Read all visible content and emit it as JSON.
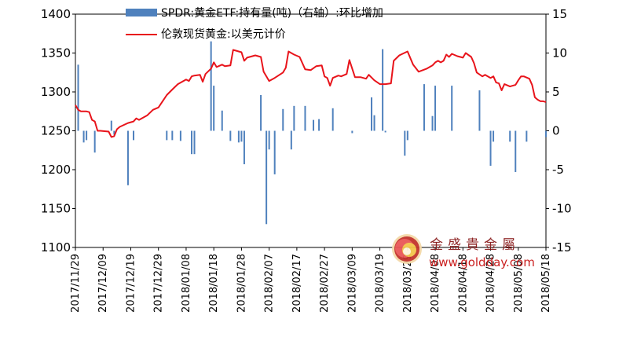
{
  "chart_data": {
    "type": "bar+line",
    "categories": [
      "2017/11/29",
      "2017/12/09",
      "2017/12/19",
      "2017/12/29",
      "2018/01/08",
      "2018/01/18",
      "2018/01/28",
      "2018/02/07",
      "2018/02/17",
      "2018/02/27",
      "2018/03/09",
      "2018/03/19",
      "2018/03/29",
      "2018/04/08",
      "2018/04/18",
      "2018/04/28",
      "2018/05/08",
      "2018/05/18"
    ],
    "x_range": [
      "2017-11-29",
      "2018-05-18"
    ],
    "y_left": {
      "min": 1100,
      "max": 1400,
      "ticks": [
        1100,
        1150,
        1200,
        1250,
        1300,
        1350,
        1400
      ]
    },
    "y_right": {
      "min": -15,
      "max": 15,
      "ticks": [
        -15,
        -10,
        -5,
        0,
        5,
        10,
        15
      ]
    },
    "series": [
      {
        "name": "SPDR:黄金ETF:持有量(吨)（右轴）:环比增加",
        "type": "bar",
        "axis": "right",
        "color": "#4f81bd",
        "points": [
          [
            "2017-11-30",
            8.5
          ],
          [
            "2017-12-02",
            -1.5
          ],
          [
            "2017-12-03",
            -1.2
          ],
          [
            "2017-12-06",
            -2.8
          ],
          [
            "2017-12-12",
            1.3
          ],
          [
            "2017-12-13",
            -0.5
          ],
          [
            "2017-12-18",
            -7.0
          ],
          [
            "2017-12-20",
            -1.2
          ],
          [
            "2018-01-01",
            -1.2
          ],
          [
            "2018-01-03",
            -1.2
          ],
          [
            "2018-01-06",
            -1.3
          ],
          [
            "2018-01-10",
            -3.0
          ],
          [
            "2018-01-11",
            -3.0
          ],
          [
            "2018-01-17",
            11.5
          ],
          [
            "2018-01-18",
            5.8
          ],
          [
            "2018-01-21",
            2.6
          ],
          [
            "2018-01-24",
            -1.3
          ],
          [
            "2018-01-27",
            -1.5
          ],
          [
            "2018-01-28",
            -1.4
          ],
          [
            "2018-01-29",
            -4.3
          ],
          [
            "2018-02-04",
            4.6
          ],
          [
            "2018-02-06",
            -12.0
          ],
          [
            "2018-02-07",
            -2.4
          ],
          [
            "2018-02-09",
            -5.6
          ],
          [
            "2018-02-12",
            2.8
          ],
          [
            "2018-02-15",
            -2.4
          ],
          [
            "2018-02-16",
            3.2
          ],
          [
            "2018-02-20",
            3.2
          ],
          [
            "2018-02-23",
            1.4
          ],
          [
            "2018-02-25",
            1.5
          ],
          [
            "2018-03-02",
            2.9
          ],
          [
            "2018-03-09",
            -0.3
          ],
          [
            "2018-03-16",
            4.3
          ],
          [
            "2018-03-17",
            2.0
          ],
          [
            "2018-03-20",
            10.5
          ],
          [
            "2018-03-21",
            -0.2
          ],
          [
            "2018-03-28",
            -3.2
          ],
          [
            "2018-03-29",
            -1.2
          ],
          [
            "2018-04-04",
            6.0
          ],
          [
            "2018-04-07",
            1.9
          ],
          [
            "2018-04-08",
            5.8
          ],
          [
            "2018-04-14",
            5.8
          ],
          [
            "2018-04-24",
            5.2
          ],
          [
            "2018-04-28",
            -4.5
          ],
          [
            "2018-04-29",
            -1.4
          ],
          [
            "2018-05-05",
            -1.4
          ],
          [
            "2018-05-07",
            -5.3
          ],
          [
            "2018-05-11",
            -1.4
          ],
          [
            "2018-05-18",
            -0.8
          ]
        ]
      },
      {
        "name": "伦敦现货黄金:以美元计价",
        "type": "line",
        "axis": "left",
        "color": "#e8141b",
        "points": [
          [
            "2017-11-29",
            1283
          ],
          [
            "2017-11-30",
            1277
          ],
          [
            "2017-12-01",
            1275
          ],
          [
            "2017-12-03",
            1275
          ],
          [
            "2017-12-04",
            1274
          ],
          [
            "2017-12-05",
            1264
          ],
          [
            "2017-12-06",
            1262
          ],
          [
            "2017-12-07",
            1250
          ],
          [
            "2017-12-08",
            1250
          ],
          [
            "2017-12-11",
            1249
          ],
          [
            "2017-12-12",
            1242
          ],
          [
            "2017-12-13",
            1243
          ],
          [
            "2017-12-14",
            1252
          ],
          [
            "2017-12-15",
            1255
          ],
          [
            "2017-12-18",
            1260
          ],
          [
            "2017-12-20",
            1262
          ],
          [
            "2017-12-21",
            1266
          ],
          [
            "2017-12-22",
            1264
          ],
          [
            "2017-12-25",
            1270
          ],
          [
            "2017-12-27",
            1277
          ],
          [
            "2017-12-29",
            1280
          ],
          [
            "2018-01-01",
            1296
          ],
          [
            "2018-01-03",
            1303
          ],
          [
            "2018-01-05",
            1310
          ],
          [
            "2018-01-08",
            1316
          ],
          [
            "2018-01-09",
            1314
          ],
          [
            "2018-01-10",
            1320
          ],
          [
            "2018-01-11",
            1321
          ],
          [
            "2018-01-13",
            1322
          ],
          [
            "2018-01-14",
            1313
          ],
          [
            "2018-01-15",
            1323
          ],
          [
            "2018-01-17",
            1330
          ],
          [
            "2018-01-18",
            1338
          ],
          [
            "2018-01-19",
            1332
          ],
          [
            "2018-01-21",
            1335
          ],
          [
            "2018-01-22",
            1333
          ],
          [
            "2018-01-24",
            1334
          ],
          [
            "2018-01-25",
            1354
          ],
          [
            "2018-01-26",
            1353
          ],
          [
            "2018-01-28",
            1351
          ],
          [
            "2018-01-29",
            1340
          ],
          [
            "2018-01-30",
            1344
          ],
          [
            "2018-02-02",
            1347
          ],
          [
            "2018-02-04",
            1345
          ],
          [
            "2018-02-05",
            1326
          ],
          [
            "2018-02-07",
            1314
          ],
          [
            "2018-02-09",
            1318
          ],
          [
            "2018-02-12",
            1325
          ],
          [
            "2018-02-13",
            1331
          ],
          [
            "2018-02-14",
            1352
          ],
          [
            "2018-02-16",
            1348
          ],
          [
            "2018-02-18",
            1345
          ],
          [
            "2018-02-20",
            1329
          ],
          [
            "2018-02-22",
            1328
          ],
          [
            "2018-02-24",
            1333
          ],
          [
            "2018-02-26",
            1334
          ],
          [
            "2018-02-27",
            1320
          ],
          [
            "2018-02-28",
            1318
          ],
          [
            "2018-03-01",
            1308
          ],
          [
            "2018-03-02",
            1318
          ],
          [
            "2018-03-04",
            1321
          ],
          [
            "2018-03-05",
            1320
          ],
          [
            "2018-03-07",
            1323
          ],
          [
            "2018-03-08",
            1341
          ],
          [
            "2018-03-10",
            1319
          ],
          [
            "2018-03-12",
            1319
          ],
          [
            "2018-03-14",
            1317
          ],
          [
            "2018-03-15",
            1322
          ],
          [
            "2018-03-17",
            1315
          ],
          [
            "2018-03-19",
            1310
          ],
          [
            "2018-03-21",
            1310
          ],
          [
            "2018-03-23",
            1311
          ],
          [
            "2018-03-24",
            1340
          ],
          [
            "2018-03-26",
            1347
          ],
          [
            "2018-03-29",
            1352
          ],
          [
            "2018-03-31",
            1335
          ],
          [
            "2018-04-02",
            1326
          ],
          [
            "2018-04-05",
            1330
          ],
          [
            "2018-04-07",
            1334
          ],
          [
            "2018-04-08",
            1338
          ],
          [
            "2018-04-09",
            1340
          ],
          [
            "2018-04-10",
            1338
          ],
          [
            "2018-04-11",
            1340
          ],
          [
            "2018-04-12",
            1348
          ],
          [
            "2018-04-13",
            1345
          ],
          [
            "2018-04-14",
            1349
          ],
          [
            "2018-04-16",
            1346
          ],
          [
            "2018-04-18",
            1344
          ],
          [
            "2018-04-19",
            1350
          ],
          [
            "2018-04-21",
            1345
          ],
          [
            "2018-04-22",
            1337
          ],
          [
            "2018-04-23",
            1325
          ],
          [
            "2018-04-25",
            1320
          ],
          [
            "2018-04-26",
            1322
          ],
          [
            "2018-04-28",
            1318
          ],
          [
            "2018-04-29",
            1320
          ],
          [
            "2018-04-30",
            1312
          ],
          [
            "2018-05-01",
            1311
          ],
          [
            "2018-05-02",
            1302
          ],
          [
            "2018-05-03",
            1310
          ],
          [
            "2018-05-05",
            1307
          ],
          [
            "2018-05-06",
            1308
          ],
          [
            "2018-05-07",
            1309
          ],
          [
            "2018-05-08",
            1315
          ],
          [
            "2018-05-09",
            1320
          ],
          [
            "2018-05-10",
            1320
          ],
          [
            "2018-05-12",
            1317
          ],
          [
            "2018-05-13",
            1309
          ],
          [
            "2018-05-14",
            1293
          ],
          [
            "2018-05-15",
            1290
          ],
          [
            "2018-05-16",
            1288
          ],
          [
            "2018-05-17",
            1288
          ],
          [
            "2018-05-18",
            1287
          ]
        ]
      }
    ],
    "grid": false
  },
  "watermark": {
    "cn": "金盛貴金屬",
    "url": "www.goldday.com"
  }
}
